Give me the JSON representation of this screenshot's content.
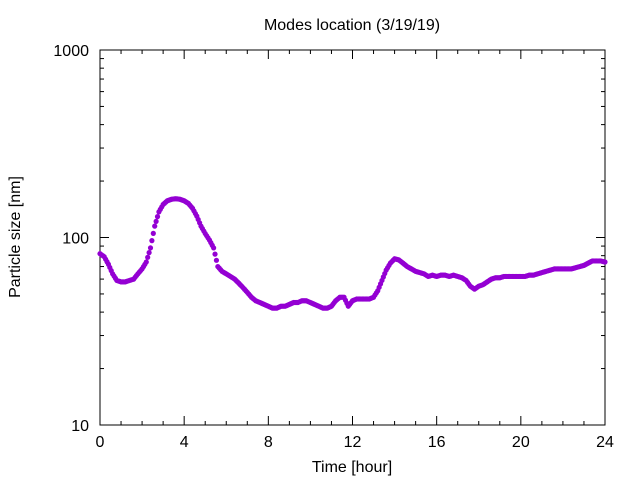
{
  "chart_data": {
    "type": "scatter",
    "title": "Modes location (3/19/19)",
    "xlabel": "Time [hour]",
    "ylabel": "Particle size [nm]",
    "xlim": [
      0,
      24
    ],
    "ylim": [
      10,
      1000
    ],
    "yscale": "log",
    "grid": false,
    "legend": "none",
    "marker_color": "#9400d3",
    "xticks": [
      0,
      4,
      8,
      12,
      16,
      20,
      24
    ],
    "yticks": [
      10,
      100,
      1000
    ],
    "xtick_labels": [
      "0",
      "4",
      "8",
      "12",
      "16",
      "20",
      "24"
    ],
    "ytick_labels": [
      "10",
      "100",
      "1000"
    ],
    "series": [
      {
        "x": [
          0.0,
          0.2,
          0.4,
          0.6,
          0.8,
          1.0,
          1.2,
          1.4,
          1.6,
          1.8,
          2.0,
          2.2,
          2.4,
          2.6,
          2.8,
          3.0,
          3.2,
          3.4,
          3.6,
          3.8,
          4.0,
          4.2,
          4.4,
          4.6,
          4.8,
          5.0,
          5.2,
          5.4,
          5.6,
          5.8,
          6.0,
          6.2,
          6.4,
          6.6,
          6.8,
          7.0,
          7.2,
          7.4,
          7.6,
          7.8,
          8.0,
          8.2,
          8.4,
          8.6,
          8.8,
          9.0,
          9.2,
          9.4,
          9.6,
          9.8,
          10.0,
          10.2,
          10.4,
          10.6,
          10.8,
          11.0,
          11.2,
          11.4,
          11.6,
          11.8,
          12.0,
          12.2,
          12.4,
          12.6,
          12.8,
          13.0,
          13.2,
          13.4,
          13.6,
          13.8,
          14.0,
          14.2,
          14.4,
          14.6,
          14.8,
          15.0,
          15.2,
          15.4,
          15.6,
          15.8,
          16.0,
          16.2,
          16.4,
          16.6,
          16.8,
          17.0,
          17.2,
          17.4,
          17.6,
          17.8,
          18.0,
          18.2,
          18.4,
          18.6,
          18.8,
          19.0,
          19.2,
          19.4,
          19.6,
          19.8,
          20.0,
          20.2,
          20.4,
          20.6,
          20.8,
          21.0,
          21.2,
          21.4,
          21.6,
          21.8,
          22.0,
          22.2,
          22.4,
          22.6,
          22.8,
          23.0,
          23.2,
          23.4,
          23.6,
          23.8,
          24.0
        ],
        "y": [
          82,
          79,
          72,
          64,
          59,
          58,
          58,
          59,
          60,
          64,
          68,
          74,
          88,
          115,
          137,
          150,
          157,
          160,
          161,
          160,
          157,
          152,
          143,
          130,
          115,
          105,
          97,
          88,
          70,
          66,
          64,
          62,
          60,
          57,
          54,
          51,
          48,
          46,
          45,
          44,
          43,
          42,
          42,
          43,
          43,
          44,
          45,
          45,
          46,
          46,
          45,
          44,
          43,
          42,
          42,
          43,
          46,
          48,
          48,
          43,
          46,
          47,
          47,
          47,
          47,
          48,
          52,
          59,
          67,
          73,
          77,
          76,
          73,
          70,
          68,
          66,
          65,
          64,
          62,
          63,
          62,
          63,
          63,
          62,
          63,
          62,
          61,
          59,
          55,
          53,
          55,
          56,
          58,
          60,
          61,
          61,
          62,
          62,
          62,
          62,
          62,
          62,
          63,
          63,
          64,
          65,
          66,
          67,
          68,
          68,
          68,
          68,
          68,
          69,
          70,
          71,
          73,
          75,
          75,
          75,
          74
        ]
      }
    ]
  }
}
